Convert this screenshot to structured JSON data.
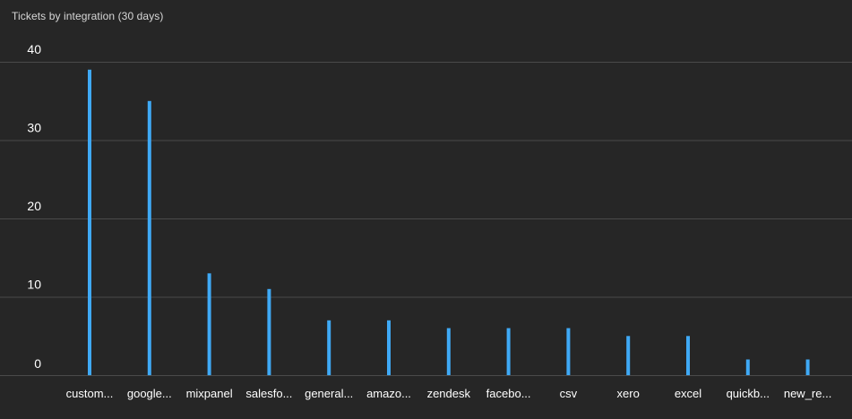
{
  "panel": {
    "title": "Tickets by integration (30 days)"
  },
  "colors": {
    "background": "#262626",
    "bar": "#3fa9f5",
    "grid": "#4a4a4a"
  },
  "chart_data": {
    "type": "bar",
    "title": "Tickets by integration (30 days)",
    "categories": [
      "custom...",
      "google...",
      "mixpanel",
      "salesfo...",
      "general...",
      "amazo...",
      "zendesk",
      "facebo...",
      "csv",
      "xero",
      "excel",
      "quickb...",
      "new_re..."
    ],
    "values": [
      39,
      35,
      13,
      11,
      7,
      7,
      6,
      6,
      6,
      5,
      5,
      2,
      2
    ],
    "ylim": [
      0,
      40
    ],
    "yticks": [
      0,
      10,
      20,
      30,
      40
    ],
    "grid": true,
    "legend": "none"
  }
}
